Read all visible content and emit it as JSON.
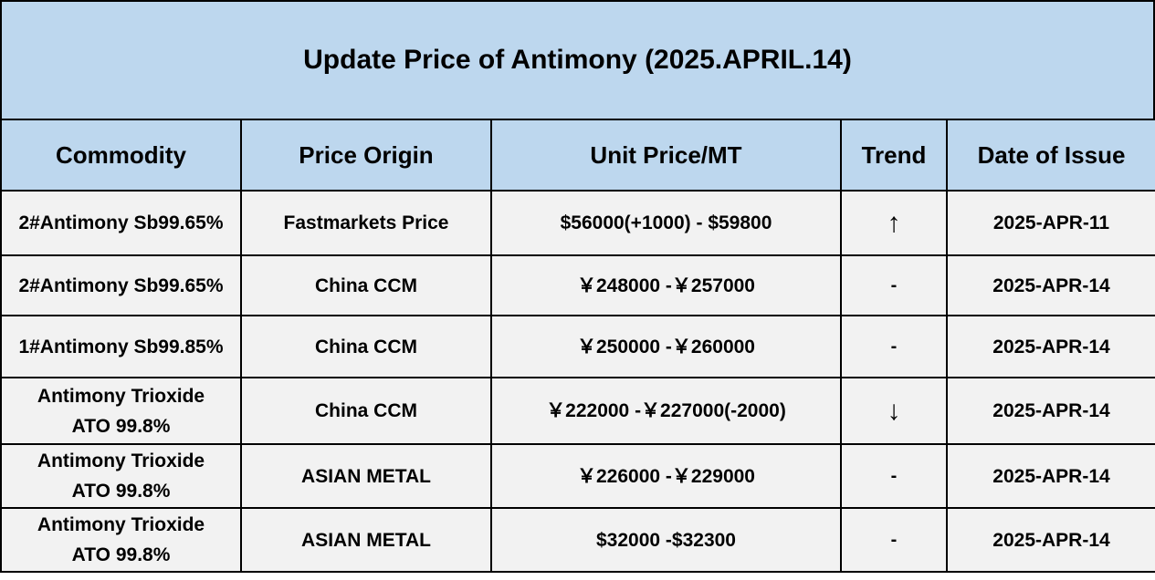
{
  "title": "Update Price of Antimony (2025.APRIL.14)",
  "headers": {
    "commodity": "Commodity",
    "price_origin": "Price Origin",
    "unit_price": "Unit Price/MT",
    "trend": "Trend",
    "date": "Date of Issue"
  },
  "rows": [
    {
      "commodity_line1": "2#Antimony  Sb99.65%",
      "commodity_line2": "",
      "price_origin": "Fastmarkets Price",
      "unit_price": "$56000(+1000) - $59800",
      "trend": "↑",
      "trend_meaning": "up",
      "date": "2025-APR-11"
    },
    {
      "commodity_line1": "2#Antimony  Sb99.65%",
      "commodity_line2": "",
      "price_origin": "China CCM",
      "unit_price": "￥248000 -￥257000",
      "trend": "-",
      "trend_meaning": "flat",
      "date": "2025-APR-14"
    },
    {
      "commodity_line1": "1#Antimony  Sb99.85%",
      "commodity_line2": "",
      "price_origin": "China CCM",
      "unit_price": "￥250000 -￥260000",
      "trend": "-",
      "trend_meaning": "flat",
      "date": "2025-APR-14"
    },
    {
      "commodity_line1": "Antimony Trioxide",
      "commodity_line2": "ATO 99.8%",
      "price_origin": "China CCM",
      "unit_price": "￥222000 -￥227000(-2000)",
      "trend": "↓",
      "trend_meaning": "down",
      "date": "2025-APR-14"
    },
    {
      "commodity_line1": "Antimony Trioxide",
      "commodity_line2": "ATO 99.8%",
      "price_origin": "ASIAN METAL",
      "unit_price": "￥226000 -￥229000",
      "trend": "-",
      "trend_meaning": "flat",
      "date": "2025-APR-14"
    },
    {
      "commodity_line1": "Antimony Trioxide",
      "commodity_line2": "ATO 99.8%",
      "price_origin": "ASIAN METAL",
      "unit_price": "$32000 -$32300",
      "trend": "-",
      "trend_meaning": "flat",
      "date": "2025-APR-14"
    }
  ],
  "colors": {
    "header_background": "#bdd7ee",
    "row_background": "#f2f2f2",
    "border": "#000000"
  }
}
